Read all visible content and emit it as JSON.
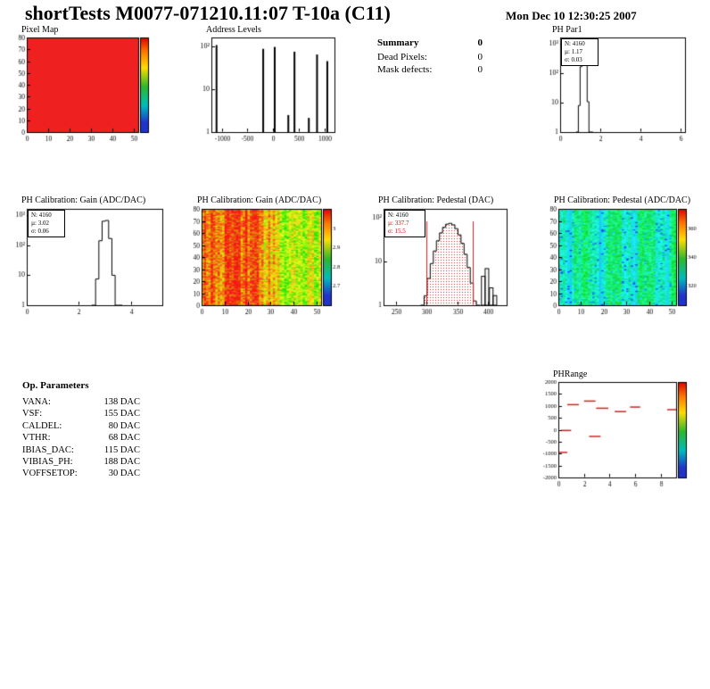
{
  "page": {
    "title": "shortTests M0077-071210.11:07 T-10a (C11)",
    "date": "Mon Dec 10 12:30:25 2007"
  },
  "summary": {
    "title": "Summary",
    "total": "0",
    "rows": [
      {
        "label": "Dead Pixels:",
        "value": "0"
      },
      {
        "label": "Mask defects:",
        "value": "0"
      }
    ]
  },
  "op_parameters": {
    "title": "Op. Parameters",
    "rows": [
      {
        "label": "VANA:",
        "value": "138 DAC"
      },
      {
        "label": "VSF:",
        "value": "155 DAC"
      },
      {
        "label": "CALDEL:",
        "value": "80 DAC"
      },
      {
        "label": "VTHR:",
        "value": "68 DAC"
      },
      {
        "label": "IBIAS_DAC:",
        "value": "115 DAC"
      },
      {
        "label": "VIBIAS_PH:",
        "value": "188 DAC"
      },
      {
        "label": "VOFFSETOP:",
        "value": "30 DAC"
      }
    ]
  },
  "colors": {
    "histogram_line": "#000000",
    "fit_text_red": "#cc0000",
    "marker_red": "#cc2222",
    "pixel_map_fill": "#ee2020"
  },
  "chart_data": [
    {
      "id": "pixel_map",
      "type": "heatmap",
      "title": "Pixel Map",
      "x_range": [
        0,
        52
      ],
      "x_ticks": [
        0,
        10,
        20,
        30,
        40,
        50
      ],
      "y_range": [
        0,
        80
      ],
      "y_ticks": [
        0,
        10,
        20,
        30,
        40,
        50,
        60,
        70,
        80
      ],
      "values": "uniform",
      "value_color": "#ee2020",
      "colorbar_labels": []
    },
    {
      "id": "address_levels",
      "type": "histogram",
      "title": "Address Levels",
      "x_range": [
        -1200,
        1200
      ],
      "x_ticks": [
        -1000,
        -500,
        0,
        500,
        1000
      ],
      "y_scale": "log",
      "y_decade_labels": [
        "10²",
        "10",
        "1"
      ],
      "peaks": [
        [
          -1100,
          0.92
        ],
        [
          -190,
          0.88
        ],
        [
          35,
          0.9
        ],
        [
          300,
          0.18
        ],
        [
          420,
          0.85
        ],
        [
          700,
          0.15
        ],
        [
          860,
          0.82
        ],
        [
          1060,
          0.75
        ]
      ]
    },
    {
      "id": "ph_par1",
      "type": "histogram",
      "title": "PH Par1",
      "stats": [
        "N: 4160",
        "µ: 1.17",
        "σ: 0.03"
      ],
      "N": 4160,
      "mean": 1.17,
      "sigma": 0.03,
      "x_range": [
        0,
        6.2
      ],
      "x_ticks": [
        0,
        2,
        4,
        6
      ],
      "y_scale": "log",
      "y_decade_labels": [
        "10³",
        "10²",
        "10",
        "1"
      ],
      "peak": {
        "center": 1.17,
        "halfwidth": 0.14,
        "height": 0.93
      }
    },
    {
      "id": "gain_distribution",
      "type": "histogram",
      "title": "PH Calibration: Gain (ADC/DAC)",
      "stats": [
        "N: 4160",
        "µ: 3.02",
        "σ: 0.06"
      ],
      "N": 4160,
      "mean": 3.02,
      "sigma": 0.06,
      "x_range": [
        0,
        5.2
      ],
      "x_ticks": [
        0,
        2,
        4
      ],
      "y_scale": "log",
      "y_decade_labels": [
        "10³",
        "10²",
        "10",
        "1"
      ],
      "peak": {
        "center": 3.02,
        "halfwidth": 0.2,
        "height": 0.9
      }
    },
    {
      "id": "gain_map",
      "type": "heatmap",
      "title": "PH Calibration: Gain (ADC/DAC)",
      "x_range": [
        0,
        52
      ],
      "x_ticks": [
        0,
        10,
        20,
        30,
        40,
        50
      ],
      "y_range": [
        0,
        80
      ],
      "y_ticks": [
        0,
        10,
        20,
        30,
        40,
        50,
        60,
        70,
        80
      ],
      "colorbar_labels": [
        "3",
        "2.9",
        "2.8",
        "2.7"
      ],
      "description": "noisy gain map: red-orange columns 0-30, yellow-green columns 30-52"
    },
    {
      "id": "pedestal_distribution",
      "type": "histogram",
      "title": "PH Calibration: Pedestal (DAC)",
      "stats": [
        "N: 4160",
        "µ: 337.7",
        "σ: 15.5"
      ],
      "N": 4160,
      "mean": 337.7,
      "sigma": 15.5,
      "x_range": [
        230,
        430
      ],
      "x_ticks": [
        250,
        300,
        350,
        400
      ],
      "y_scale": "log",
      "y_decade_labels": [
        "10²",
        "10",
        "1"
      ],
      "peak": {
        "center": 337.7,
        "halfwidth": 22,
        "height": 0.85,
        "bin": 5
      },
      "cut_lines": [
        300,
        375
      ],
      "outlier_bars": [
        [
          392,
          0.3
        ],
        [
          398,
          0.38
        ],
        [
          405,
          0.18
        ],
        [
          411,
          0.1
        ]
      ]
    },
    {
      "id": "pedestal_map",
      "type": "heatmap",
      "title": "PH Calibration: Pedestal (ADC/DAC)",
      "x_range": [
        0,
        52
      ],
      "x_ticks": [
        0,
        10,
        20,
        30,
        40,
        50
      ],
      "y_range": [
        0,
        80
      ],
      "y_ticks": [
        0,
        10,
        20,
        30,
        40,
        50,
        60,
        70,
        80
      ],
      "colorbar_labels": [
        "360",
        "340",
        "320"
      ],
      "description": "noisy pedestal map: green with cyan vertical banding"
    },
    {
      "id": "ph_range",
      "type": "scatter",
      "title": "PHRange",
      "x_range": [
        0,
        9.2
      ],
      "x_ticks": [
        0,
        2,
        4,
        6,
        8
      ],
      "y_range": [
        -2000,
        2000
      ],
      "y_tick_labels": [
        "2000",
        "1500",
        "1000",
        "500",
        "0",
        "-500",
        "-1000",
        "-1500",
        "-2000"
      ],
      "marker": "red horizontal dash",
      "segments": [
        [
          0.7,
          1.6,
          1050
        ],
        [
          2.0,
          2.9,
          1200
        ],
        [
          2.95,
          3.9,
          900
        ],
        [
          4.4,
          5.3,
          760
        ],
        [
          5.6,
          6.4,
          950
        ],
        [
          8.5,
          9.2,
          840
        ],
        [
          0.2,
          1.0,
          -30
        ],
        [
          2.4,
          3.3,
          -280
        ],
        [
          0.0,
          0.7,
          -950
        ]
      ],
      "colorbar_labels": []
    }
  ]
}
